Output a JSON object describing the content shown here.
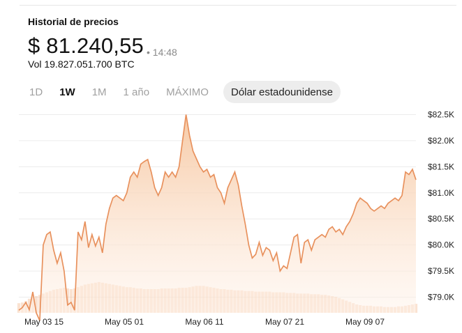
{
  "header": {
    "title": "Historial de precios",
    "price": "$ 81.240,55",
    "time": "• 14:48",
    "volume": "Vol 19.827.051.700 BTC"
  },
  "tabs": [
    {
      "label": "1D",
      "active": false
    },
    {
      "label": "1W",
      "active": true
    },
    {
      "label": "1M",
      "active": false
    },
    {
      "label": "1 año",
      "active": false
    },
    {
      "label": "MÁXIMO",
      "active": false
    }
  ],
  "currency": {
    "label": "Dólar estadounidense"
  },
  "chart_data": {
    "type": "area",
    "x_tick_labels": [
      "May 03 15",
      "May 05 01",
      "May 06 11",
      "May 07 21",
      "May 09 07"
    ],
    "y_tick_labels": [
      "$82.5K",
      "$82.0K",
      "$81.5K",
      "$81.0K",
      "$80.5K",
      "$80.0K",
      "$79.5K",
      "$79.0K"
    ],
    "ylim": [
      78700,
      82600
    ],
    "colors": {
      "line": "#e8915d",
      "area_top": "#f6c7a1",
      "area_bottom": "#fff4ec",
      "grid": "#ececec"
    },
    "price_series": [
      78750,
      78800,
      78900,
      78760,
      79100,
      78700,
      78550,
      80000,
      80200,
      80250,
      79900,
      79650,
      79850,
      79500,
      78850,
      78900,
      78750,
      80250,
      80100,
      80450,
      79950,
      80200,
      79980,
      80150,
      79850,
      80400,
      80700,
      80900,
      80950,
      80900,
      80850,
      81000,
      81300,
      81400,
      81300,
      81550,
      81600,
      81640,
      81400,
      81100,
      80950,
      81100,
      81400,
      81300,
      81400,
      81300,
      81500,
      82000,
      82500,
      82100,
      81800,
      81650,
      81500,
      81400,
      81450,
      81300,
      81350,
      81100,
      81000,
      80800,
      81100,
      81250,
      81400,
      81150,
      80750,
      80400,
      80000,
      79750,
      79820,
      80050,
      79800,
      79950,
      79900,
      79700,
      79850,
      79500,
      79600,
      79550,
      79850,
      80150,
      80200,
      79650,
      80050,
      80100,
      79900,
      80100,
      80150,
      80200,
      80150,
      80300,
      80350,
      80250,
      80300,
      80200,
      80350,
      80450,
      80600,
      80800,
      80900,
      80850,
      80800,
      80700,
      80650,
      80700,
      80750,
      80700,
      80800,
      80850,
      80900,
      80850,
      80950,
      81400,
      81350,
      81450,
      81250
    ],
    "volume_series": [
      0.15,
      0.16,
      0.18,
      0.22,
      0.24,
      0.26,
      0.28,
      0.3,
      0.32,
      0.34,
      0.36,
      0.37,
      0.38,
      0.39,
      0.38,
      0.37,
      0.38,
      0.4,
      0.42,
      0.44,
      0.45,
      0.46,
      0.47,
      0.48,
      0.47,
      0.46,
      0.45,
      0.44,
      0.43,
      0.42,
      0.41,
      0.4,
      0.4,
      0.39,
      0.38,
      0.38,
      0.37,
      0.37,
      0.37,
      0.37,
      0.37,
      0.38,
      0.38,
      0.38,
      0.38,
      0.38,
      0.39,
      0.39,
      0.39,
      0.4,
      0.41,
      0.42,
      0.42,
      0.42,
      0.41,
      0.4,
      0.39,
      0.38,
      0.37,
      0.37,
      0.36,
      0.36,
      0.35,
      0.35,
      0.35,
      0.34,
      0.34,
      0.34,
      0.33,
      0.33,
      0.33,
      0.33,
      0.33,
      0.32,
      0.32,
      0.32,
      0.32,
      0.31,
      0.31,
      0.31,
      0.3,
      0.3,
      0.3,
      0.3,
      0.29,
      0.29,
      0.29,
      0.28,
      0.28,
      0.27,
      0.26,
      0.25,
      0.23,
      0.21,
      0.19,
      0.17,
      0.15,
      0.13,
      0.12,
      0.11,
      0.11,
      0.11,
      0.1,
      0.1,
      0.1,
      0.09,
      0.09,
      0.09,
      0.09,
      0.1,
      0.1,
      0.11,
      0.12,
      0.13,
      0.14
    ]
  }
}
